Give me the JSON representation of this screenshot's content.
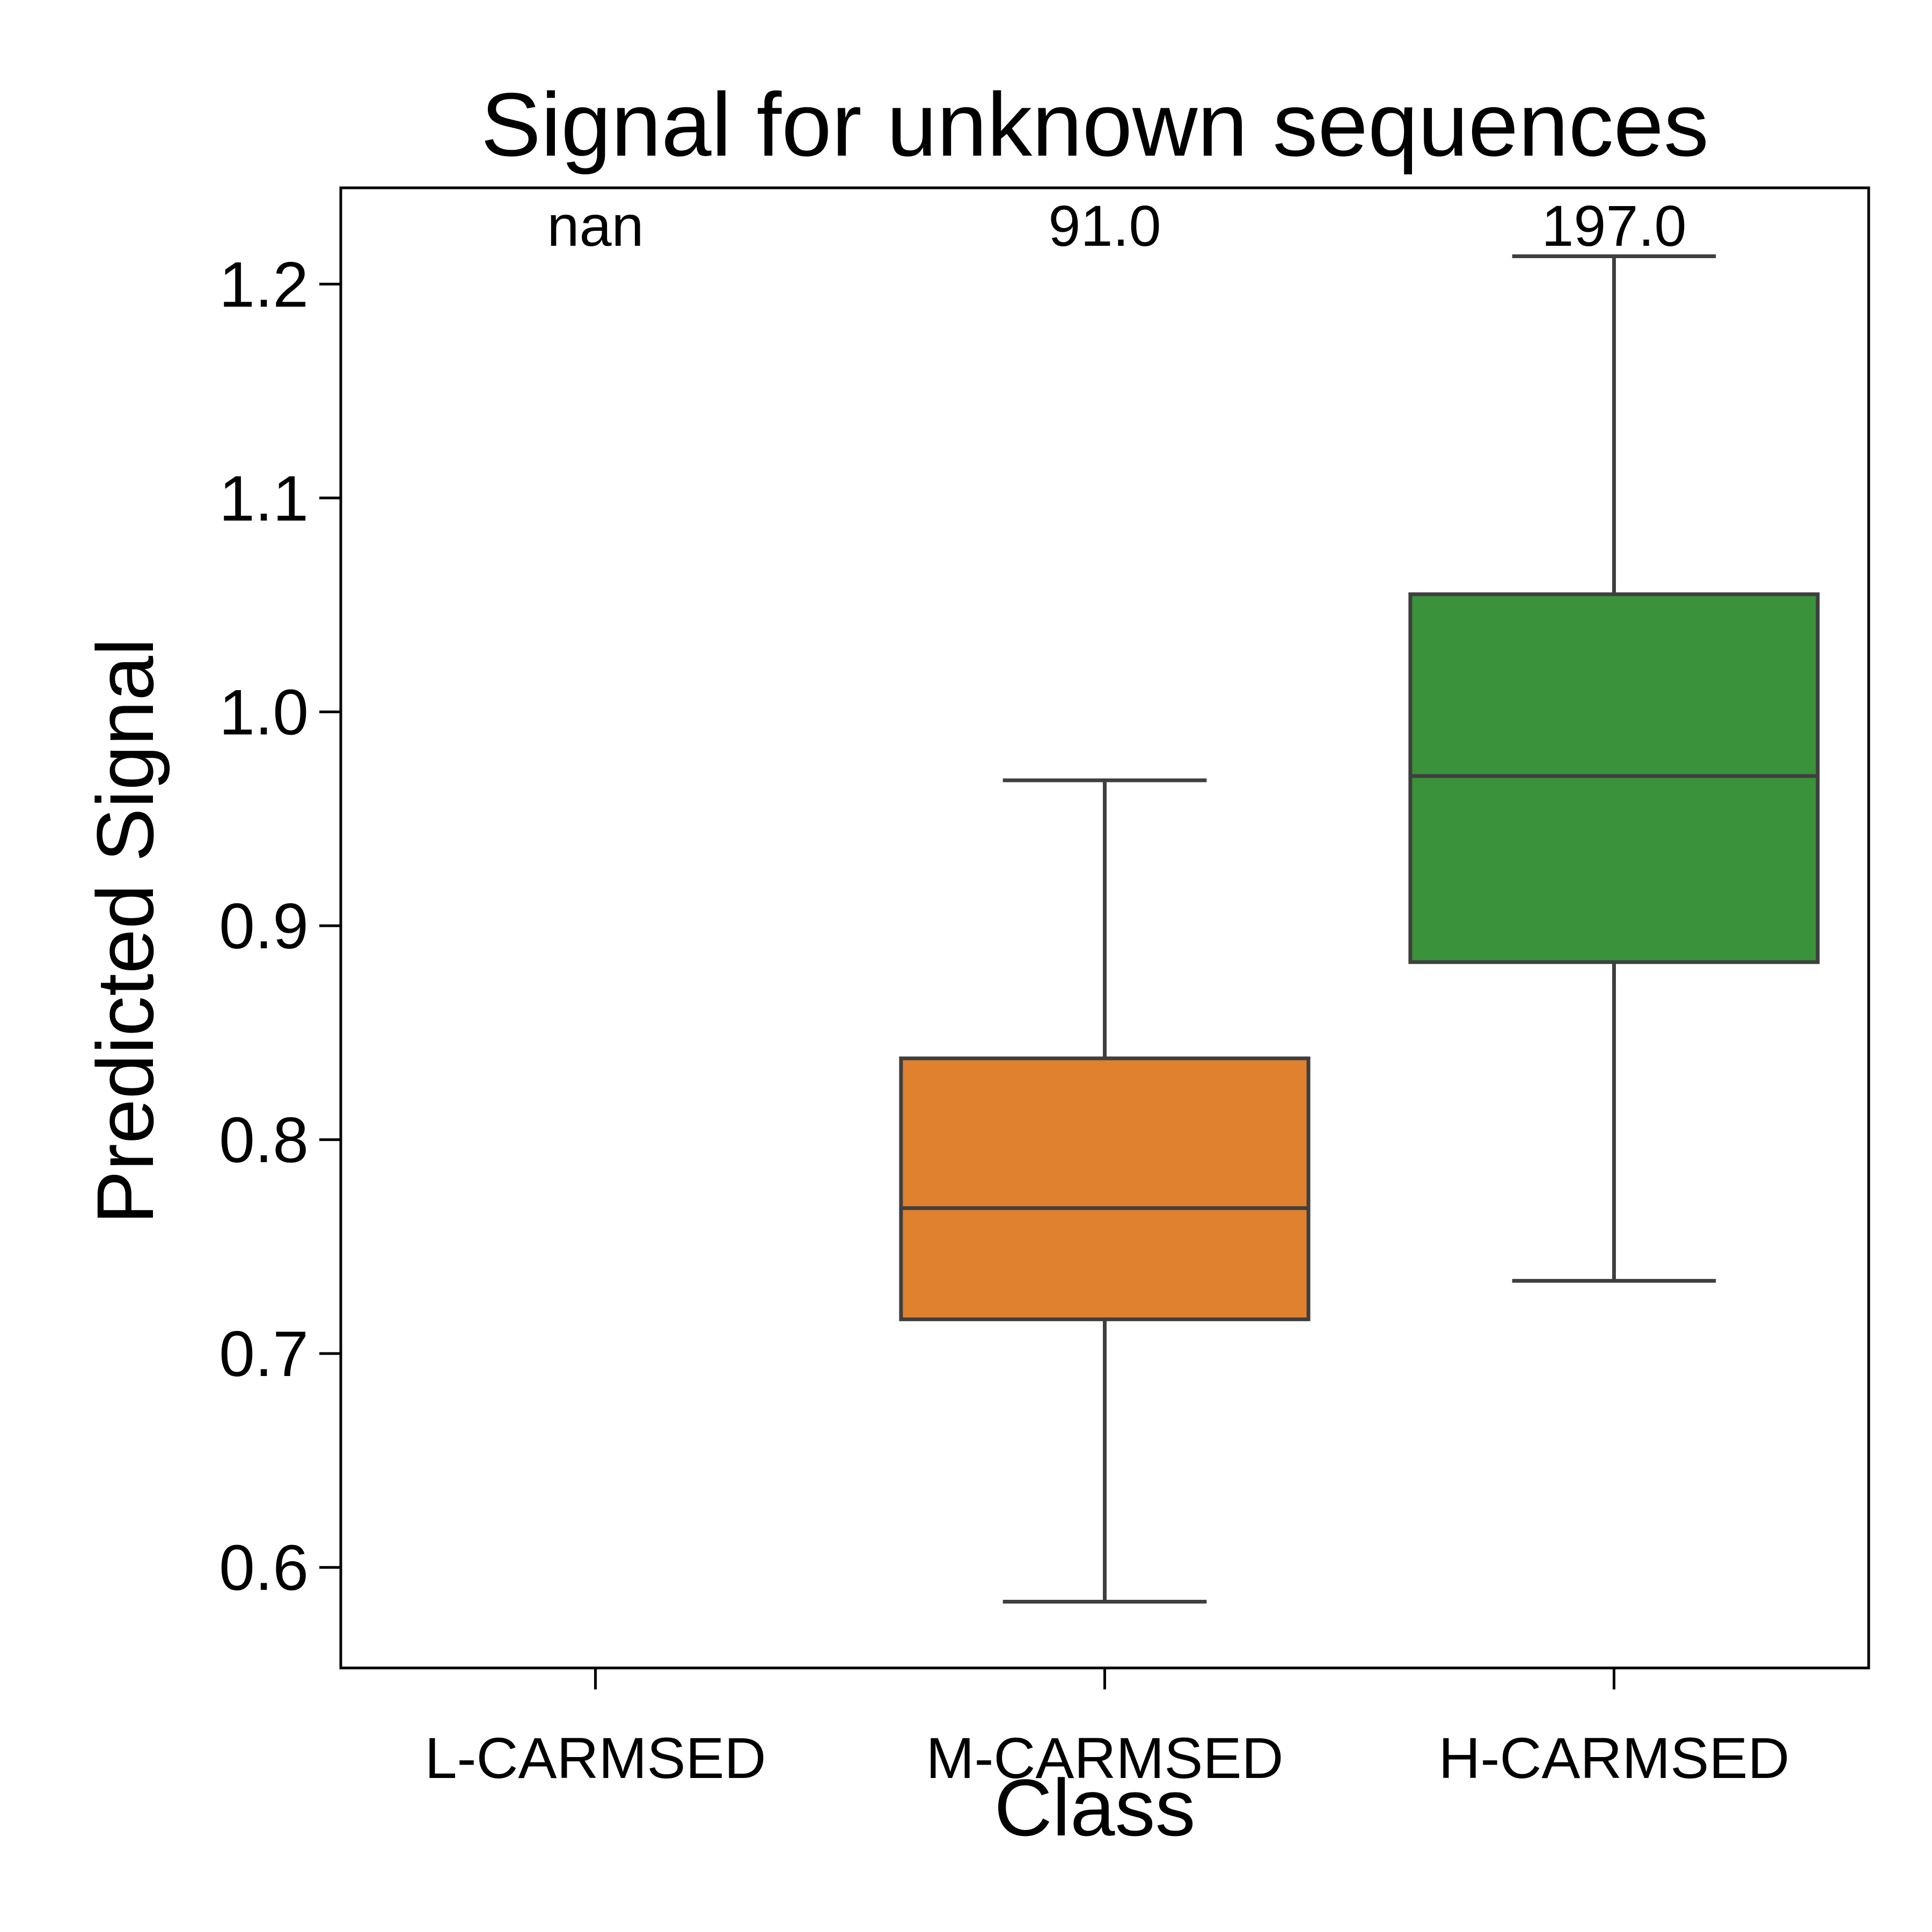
{
  "chart_data": {
    "type": "box",
    "title": "Signal for unknown sequences",
    "xlabel": "Class",
    "ylabel": "Predicted Signal",
    "ylim": [
      0.553,
      1.245
    ],
    "yticks": [
      "0.6",
      "0.7",
      "0.8",
      "0.9",
      "1.0",
      "1.1",
      "1.2"
    ],
    "ytick_values": [
      0.6,
      0.7,
      0.8,
      0.9,
      1.0,
      1.1,
      1.2
    ],
    "categories": [
      "L-CARMSED",
      "M-CARMSED",
      "H-CARMSED"
    ],
    "counts": [
      "nan",
      "91.0",
      "197.0"
    ],
    "boxes": [
      null,
      {
        "whisker_low": 0.584,
        "q1": 0.716,
        "median": 0.768,
        "q3": 0.838,
        "whisker_high": 0.968,
        "color": "#e0812f"
      },
      {
        "whisker_low": 0.734,
        "q1": 0.883,
        "median": 0.97,
        "q3": 1.055,
        "whisker_high": 1.213,
        "color": "#3a923a"
      }
    ],
    "grid": false,
    "legend": "none"
  }
}
